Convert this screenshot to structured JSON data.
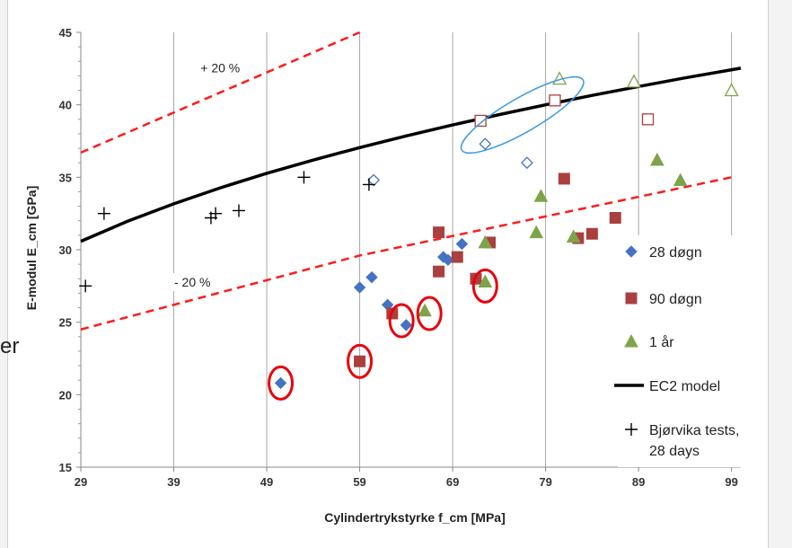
{
  "page": {
    "clipped_text": "er"
  },
  "chart_data": {
    "type": "scatter",
    "title": "",
    "xlabel": "Cylindertrykstyrke f_cm  [MPa]",
    "ylabel": "E-modul E_cm [GPa]",
    "xlim": [
      29,
      100
    ],
    "ylim": [
      15,
      45
    ],
    "x_ticks": [
      29,
      39,
      49,
      59,
      69,
      79,
      89,
      99
    ],
    "y_ticks": [
      15,
      20,
      25,
      30,
      35,
      40,
      45
    ],
    "grid": "vertical",
    "legend_position": "right",
    "annotations": [
      {
        "text": "+ 20 %",
        "x": 44,
        "y": 42.5
      },
      {
        "text": "- 20 %",
        "x": 41,
        "y": 27.7
      }
    ],
    "colors": {
      "d28": "#4472C4",
      "d90": "#A9403F",
      "yr1": "#7FA34A",
      "ec2": "#000000",
      "band": "#FF1A1A",
      "circle_red": "#E8000B",
      "ellipse_blue": "#3C9AE0"
    },
    "lines": [
      {
        "key": "ec2",
        "style": "solid",
        "x": [
          29,
          34,
          39,
          44,
          49,
          54,
          59,
          64,
          69,
          74,
          79,
          84,
          89,
          94,
          100
        ],
        "y": [
          30.58,
          31.96,
          33.17,
          34.27,
          35.27,
          36.19,
          37.05,
          37.85,
          38.61,
          39.32,
          40.0,
          40.65,
          41.26,
          41.86,
          42.53
        ]
      },
      {
        "key": "upper",
        "style": "dashed",
        "x": [
          29,
          59
        ],
        "y": [
          36.7,
          45
        ]
      },
      {
        "key": "lower",
        "style": "dashed",
        "x": [
          29,
          59,
          99
        ],
        "y": [
          24.5,
          29.6,
          35.0
        ]
      }
    ],
    "series": [
      {
        "key": "d28",
        "name": "28 døgn",
        "marker": "diamond",
        "filled": true,
        "points": [
          [
            50.5,
            20.8
          ],
          [
            59,
            27.4
          ],
          [
            60.3,
            28.1
          ],
          [
            62,
            26.2
          ],
          [
            64,
            24.8
          ],
          [
            68,
            29.5
          ],
          [
            68.5,
            29.3
          ],
          [
            70,
            30.4
          ],
          [
            71.5,
            28
          ]
        ]
      },
      {
        "key": "d90",
        "name": "90 døgn",
        "marker": "square",
        "filled": true,
        "points": [
          [
            59,
            22.3
          ],
          [
            62.5,
            25.6
          ],
          [
            67.5,
            31.2
          ],
          [
            67.5,
            28.5
          ],
          [
            69.5,
            29.5
          ],
          [
            71.5,
            28
          ],
          [
            73,
            30.5
          ],
          [
            81,
            34.9
          ],
          [
            82.5,
            30.8
          ],
          [
            84,
            31.1
          ],
          [
            86.5,
            32.2
          ]
        ]
      },
      {
        "key": "yr1",
        "name": "1 år",
        "marker": "triangle",
        "filled": true,
        "points": [
          [
            66,
            25.8
          ],
          [
            72.5,
            27.8
          ],
          [
            72.5,
            30.5
          ],
          [
            78,
            31.2
          ],
          [
            78.5,
            33.7
          ],
          [
            82,
            30.9
          ],
          [
            91,
            36.2
          ],
          [
            93.5,
            34.8
          ]
        ]
      },
      {
        "key": "d28_open",
        "marker": "diamond",
        "filled": false,
        "color_key": "d28",
        "points": [
          [
            60.5,
            34.8
          ],
          [
            72.5,
            37.3
          ],
          [
            77,
            36
          ]
        ]
      },
      {
        "key": "d90_open",
        "marker": "square",
        "filled": false,
        "color_key": "d90",
        "points": [
          [
            72,
            38.9
          ],
          [
            80,
            40.3
          ],
          [
            90,
            39
          ]
        ]
      },
      {
        "key": "yr1_open",
        "marker": "triangle",
        "filled": false,
        "color_key": "yr1",
        "points": [
          [
            80.5,
            41.8
          ],
          [
            88.5,
            41.6
          ],
          [
            99,
            41
          ]
        ]
      },
      {
        "key": "bj",
        "name": "Bjørvika tests, 28 days",
        "marker": "plus",
        "filled": false,
        "points": [
          [
            29.5,
            27.5
          ],
          [
            31.5,
            32.5
          ],
          [
            43,
            32.2
          ],
          [
            43.5,
            32.5
          ],
          [
            46,
            32.7
          ],
          [
            53,
            35
          ],
          [
            60,
            34.5
          ]
        ]
      }
    ],
    "highlight_circles": [
      [
        50.5,
        20.8
      ],
      [
        59,
        22.3
      ],
      [
        63.5,
        25.1
      ],
      [
        66.5,
        25.6
      ],
      [
        72.5,
        27.5
      ]
    ],
    "highlight_ellipse": {
      "x_center": 76.5,
      "y_center": 39.3
    },
    "legend": [
      {
        "key": "d28",
        "label": "28 døgn",
        "marker": "diamond"
      },
      {
        "key": "d90",
        "label": "90 døgn",
        "marker": "square"
      },
      {
        "key": "yr1",
        "label": "1 år",
        "marker": "triangle"
      },
      {
        "key": "ec2",
        "label": "EC2 model",
        "marker": "line"
      },
      {
        "key": "bj",
        "label": "Bjørvika tests,",
        "label2": "28 days",
        "marker": "plus"
      }
    ]
  }
}
